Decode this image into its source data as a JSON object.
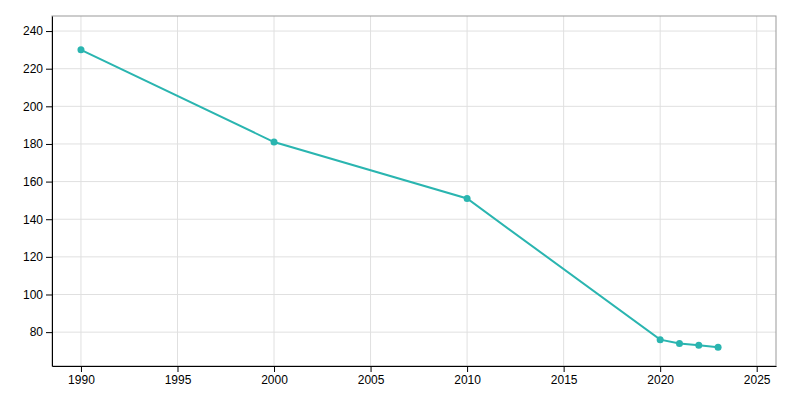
{
  "chart_data": {
    "type": "line",
    "x": [
      1990,
      2000,
      2010,
      2020,
      2021,
      2022,
      2023
    ],
    "values": [
      230,
      181,
      151,
      76,
      74,
      73,
      72
    ],
    "color": "#2AB5B0",
    "marker": "circle",
    "xlim": [
      1988.5,
      2026
    ],
    "ylim": [
      62,
      248
    ],
    "xticks": [
      1990,
      1995,
      2000,
      2005,
      2010,
      2015,
      2020,
      2025
    ],
    "yticks": [
      80,
      100,
      120,
      140,
      160,
      180,
      200,
      220,
      240
    ],
    "grid": true
  }
}
